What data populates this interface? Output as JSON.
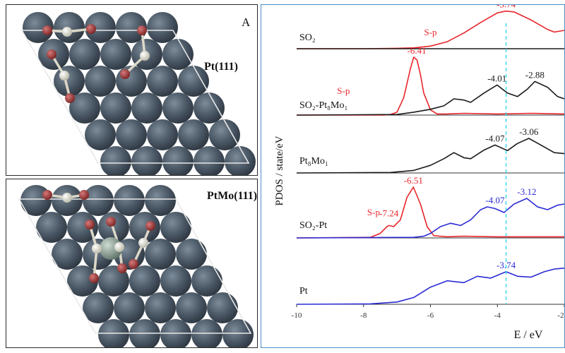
{
  "panel_a": {
    "letter": "A",
    "top_label": "Pt(111)",
    "bottom_label": "PtMo(111)"
  },
  "colors": {
    "s_p": "#e8262b",
    "black": "#1a1a1a",
    "pt_d": "#2b2bd4",
    "dash": "#36d6e8",
    "atom": "#4b5866",
    "oxygen": "#a33a3a",
    "sulfur": "#ecebdc",
    "mo": "#8fa39a",
    "frame": "#4a90c8"
  },
  "chart_data": {
    "type": "line",
    "xlabel": "E / eV",
    "ylabel": "PDOS / state/eV",
    "xlim": [
      -10,
      -2
    ],
    "xticks": [
      "-10",
      "-8",
      "-6",
      "-4",
      "-2"
    ],
    "dashed_line_x": -3.74,
    "panels": [
      {
        "label": "SO₂",
        "series": [
          {
            "color": "red",
            "name": "S-p",
            "x": [
              -10,
              -8,
              -7,
              -6.5,
              -6,
              -5.5,
              -5,
              -4.5,
              -4,
              -3.74,
              -3.5,
              -3,
              -2.5,
              -2.3,
              -2
            ],
            "values": [
              0,
              0,
              0.01,
              0.02,
              0.06,
              0.16,
              0.36,
              0.6,
              0.82,
              0.86,
              0.84,
              0.66,
              0.44,
              0.38,
              0.42
            ]
          },
          {
            "color": "black",
            "x": [
              -10,
              -2
            ],
            "values": [
              0,
              0
            ]
          }
        ],
        "annotations": [
          {
            "text": "S-p",
            "x": -6.0,
            "color": "red"
          },
          {
            "text": "-3.74",
            "x": -3.74,
            "color": "red"
          }
        ]
      },
      {
        "label": "SO₂-Pt₈Mo₁",
        "series": [
          {
            "color": "red",
            "name": "S-p",
            "x": [
              -10,
              -7.4,
              -7.2,
              -7.0,
              -6.8,
              -6.6,
              -6.5,
              -6.4,
              -6.3,
              -6.2,
              -6.0,
              -5.8,
              -5.5,
              -5,
              -4,
              -3,
              -2
            ],
            "values": [
              0,
              0,
              0.01,
              0.05,
              0.3,
              0.8,
              1.0,
              0.95,
              0.7,
              0.38,
              0.09,
              0.02,
              0.02,
              0.03,
              0.02,
              0.03,
              0.02
            ]
          },
          {
            "color": "black",
            "x": [
              -10,
              -7.0,
              -6.5,
              -6.0,
              -5.6,
              -5.3,
              -5.0,
              -4.8,
              -4.4,
              -4.01,
              -3.7,
              -3.4,
              -3.1,
              -2.88,
              -2.5,
              -2.2,
              -2.0
            ],
            "values": [
              0,
              0.01,
              0.05,
              0.1,
              0.16,
              0.28,
              0.26,
              0.22,
              0.38,
              0.52,
              0.38,
              0.32,
              0.45,
              0.58,
              0.48,
              0.32,
              0.28
            ]
          }
        ],
        "annotations": [
          {
            "text": "S-p",
            "x": -8.6,
            "color": "red"
          },
          {
            "text": "-6.41",
            "x": -6.41,
            "color": "red"
          },
          {
            "text": "-4.01",
            "x": -4.01,
            "color": "black"
          },
          {
            "text": "-2.88",
            "x": -2.88,
            "color": "black"
          }
        ]
      },
      {
        "label": "Pt₈Mo₁",
        "series": [
          {
            "color": "black",
            "x": [
              -10,
              -7.2,
              -6.5,
              -6.0,
              -5.6,
              -5.3,
              -5.0,
              -4.8,
              -4.4,
              -4.07,
              -3.7,
              -3.4,
              -3.06,
              -2.7,
              -2.3,
              -2.0
            ],
            "values": [
              0,
              0.01,
              0.05,
              0.15,
              0.28,
              0.4,
              0.3,
              0.28,
              0.45,
              0.55,
              0.44,
              0.58,
              0.68,
              0.55,
              0.4,
              0.38
            ]
          }
        ],
        "annotations": [
          {
            "text": "-4.07",
            "x": -4.07,
            "color": "black"
          },
          {
            "text": "-3.06",
            "x": -3.06,
            "color": "black"
          }
        ]
      },
      {
        "label": "SO₂-Pt",
        "series": [
          {
            "color": "red",
            "name": "S-p",
            "x": [
              -10,
              -7.8,
              -7.5,
              -7.3,
              -7.24,
              -7.1,
              -6.9,
              -6.7,
              -6.51,
              -6.3,
              -6.1,
              -5.9,
              -5.5,
              -5,
              -4,
              -3,
              -2
            ],
            "values": [
              0,
              0.01,
              0.08,
              0.2,
              0.22,
              0.2,
              0.32,
              0.72,
              0.9,
              0.6,
              0.2,
              0.04,
              0.02,
              0.03,
              0.02,
              0.02,
              0.02
            ]
          },
          {
            "color": "blue",
            "x": [
              -10,
              -6.5,
              -6.2,
              -6.0,
              -5.7,
              -5.4,
              -5.1,
              -4.8,
              -4.5,
              -4.3,
              -4.07,
              -3.8,
              -3.5,
              -3.12,
              -2.8,
              -2.5,
              -2.2,
              -2.0
            ],
            "values": [
              0,
              0.01,
              0.03,
              0.08,
              0.2,
              0.26,
              0.22,
              0.32,
              0.5,
              0.55,
              0.52,
              0.45,
              0.6,
              0.7,
              0.55,
              0.5,
              0.58,
              0.6
            ]
          }
        ],
        "annotations": [
          {
            "text": "S-p",
            "x": -7.7,
            "color": "red"
          },
          {
            "text": "-7.24",
            "x": -7.24,
            "color": "red"
          },
          {
            "text": "-6.51",
            "x": -6.51,
            "color": "red"
          },
          {
            "text": "-4.07",
            "x": -4.07,
            "color": "blue"
          },
          {
            "text": "-3.12",
            "x": -3.12,
            "color": "blue"
          }
        ]
      },
      {
        "label": "Pt",
        "series": [
          {
            "color": "blue",
            "x": [
              -10,
              -7.8,
              -7.0,
              -6.5,
              -6.0,
              -5.5,
              -5.0,
              -4.6,
              -4.2,
              -3.74,
              -3.4,
              -3.0,
              -2.6,
              -2.3,
              -2.0
            ],
            "values": [
              0,
              0.01,
              0.05,
              0.15,
              0.38,
              0.52,
              0.48,
              0.62,
              0.58,
              0.72,
              0.62,
              0.6,
              0.72,
              0.78,
              0.8
            ]
          }
        ],
        "annotations": [
          {
            "text": "-3.74",
            "x": -3.74,
            "color": "blue"
          }
        ]
      }
    ]
  }
}
